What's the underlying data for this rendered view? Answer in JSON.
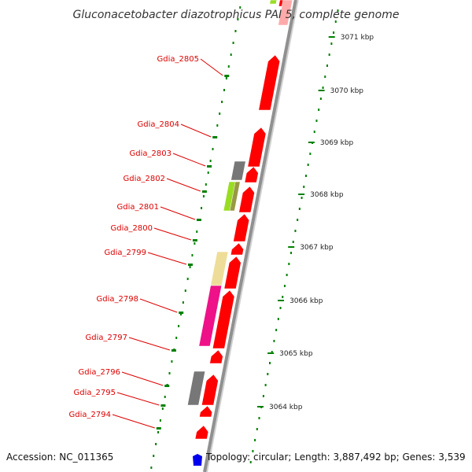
{
  "title": "Gluconacetobacter diazotrophicus PAI 5, complete genome",
  "footer": {
    "accession": "Accession: NC_011365",
    "topology": "Topology: circular; Length: 3,887,492 bp; Genes: 3,539"
  },
  "colors": {
    "cds": "#ff0000",
    "backbone": "#909090",
    "tick": "#008000",
    "label": "#dd0000",
    "leader": "#dd0000",
    "gray_feature": "#777777",
    "lime_feature": "#99dd22",
    "tan_feature": "#eedd99",
    "pink_feature": "#ee1188",
    "topology_marker": "#0000ee"
  },
  "gene_labels": [
    "Gdia_2805",
    "Gdia_2804",
    "Gdia_2803",
    "Gdia_2802",
    "Gdia_2801",
    "Gdia_2800",
    "Gdia_2799",
    "Gdia_2798",
    "Gdia_2797",
    "Gdia_2796",
    "Gdia_2795",
    "Gdia_2794"
  ],
  "kbp_labels": [
    "3071 kbp",
    "3070 kbp",
    "3069 kbp",
    "3068 kbp",
    "3067 kbp",
    "3066 kbp",
    "3065 kbp",
    "3064 kbp"
  ]
}
